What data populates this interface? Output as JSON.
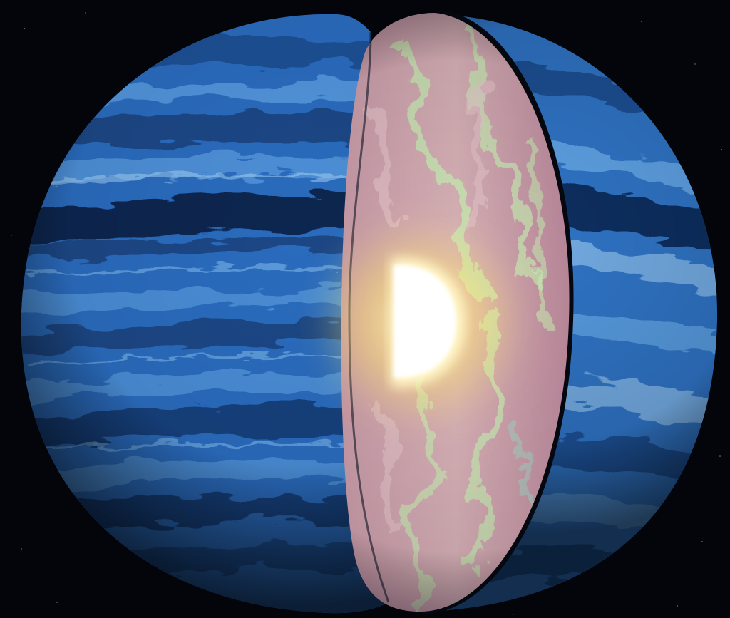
{
  "scene": {
    "subject": "cutaway-gas-giant-planet",
    "colors": {
      "space": "#03050a",
      "star": "#ffffff",
      "band_dark": "#0f2f5e",
      "band_mid": "#2f73c4",
      "band_light": "#6fb2ee",
      "band_highlight": "#a9d6f7",
      "interior_pink": "#d9aeb6",
      "interior_mauve": "#b47f95",
      "interior_green": "#c8f3b4",
      "core_white": "#ffffff",
      "core_glow": "#ffe86a",
      "rim_dark": "#05080f"
    }
  }
}
